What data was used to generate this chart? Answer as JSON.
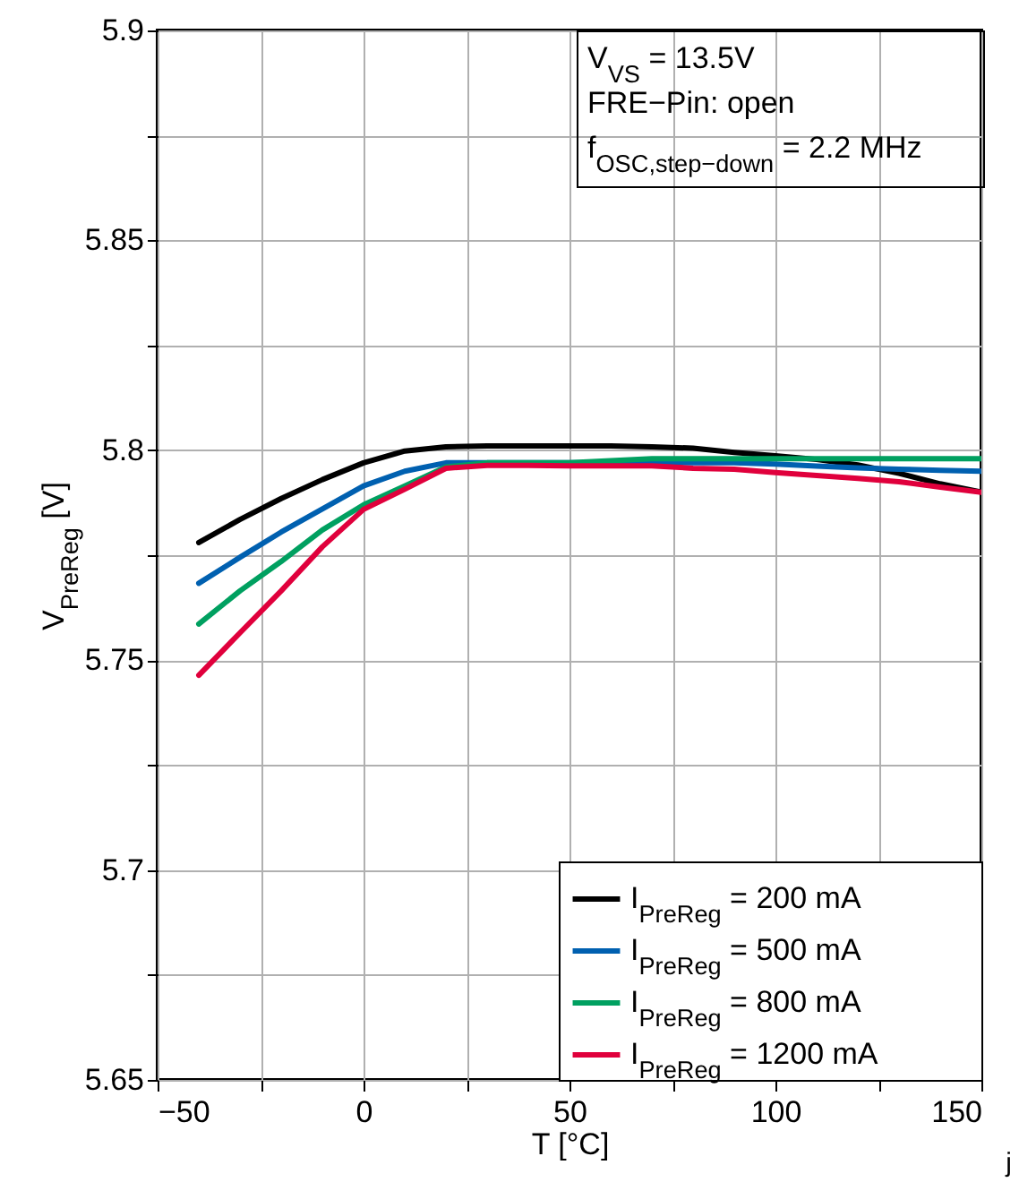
{
  "chart_data": {
    "type": "line",
    "xlabel": "T [°C]",
    "ylabel": "V$_{PreReg}$ [V]",
    "annotations": [
      "V$_{VS}$ = 13.5V",
      "FRE−Pin: open",
      "f$_{OSC,step−down}$ = 2.2 MHz",
      "j"
    ],
    "x": [
      -40,
      -30,
      -20,
      -10,
      0,
      10,
      20,
      30,
      40,
      50,
      60,
      70,
      80,
      90,
      100,
      110,
      120,
      130,
      140,
      150
    ],
    "series": [
      {
        "name": "I$_{PreReg}$ = 200 mA",
        "color": "#000000",
        "values": [
          5.778,
          5.7835,
          5.7885,
          5.793,
          5.797,
          5.7998,
          5.8008,
          5.801,
          5.801,
          5.801,
          5.801,
          5.8008,
          5.8005,
          5.7995,
          5.7987,
          5.7978,
          5.7965,
          5.7945,
          5.792,
          5.79
        ]
      },
      {
        "name": "I$_{PreReg}$ = 500 mA",
        "color": "#0060b0",
        "values": [
          5.7683,
          5.7745,
          5.7805,
          5.786,
          5.7915,
          5.795,
          5.797,
          5.797,
          5.797,
          5.797,
          5.797,
          5.797,
          5.797,
          5.797,
          5.7967,
          5.7962,
          5.7958,
          5.7955,
          5.7952,
          5.795
        ]
      },
      {
        "name": "I$_{PreReg}$ = 800 mA",
        "color": "#00a060",
        "values": [
          5.7586,
          5.7665,
          5.7735,
          5.781,
          5.787,
          5.7915,
          5.796,
          5.797,
          5.797,
          5.797,
          5.7975,
          5.798,
          5.798,
          5.798,
          5.798,
          5.798,
          5.798,
          5.798,
          5.798,
          5.798
        ]
      },
      {
        "name": "I$_{PreReg}$ = 1200 mA",
        "color": "#e0003c",
        "values": [
          5.7464,
          5.7565,
          5.7665,
          5.777,
          5.7859,
          5.7907,
          5.7957,
          5.7964,
          5.7964,
          5.7963,
          5.7963,
          5.7963,
          5.7957,
          5.7955,
          5.7947,
          5.794,
          5.7933,
          5.7925,
          5.7912,
          5.79
        ]
      }
    ],
    "xlim": [
      -50,
      150
    ],
    "xticks": [
      -50,
      {
        "value": -25,
        "label": null
      },
      0,
      {
        "value": 25,
        "label": null
      },
      50,
      {
        "value": 75,
        "label": null
      },
      100,
      {
        "value": 125,
        "label": null
      },
      150
    ],
    "ylim": [
      5.65,
      5.9
    ],
    "yticks": [
      5.65,
      {
        "value": 5.675,
        "label": null
      },
      5.7,
      {
        "value": 5.725,
        "label": null
      },
      5.75,
      {
        "value": 5.775,
        "label": null
      },
      5.8,
      {
        "value": 5.825,
        "label": null
      },
      5.85,
      {
        "value": 5.875,
        "label": null
      },
      5.9
    ],
    "grid": true,
    "legend": "bottom right",
    "marker": "none",
    "line_style": "solid"
  }
}
